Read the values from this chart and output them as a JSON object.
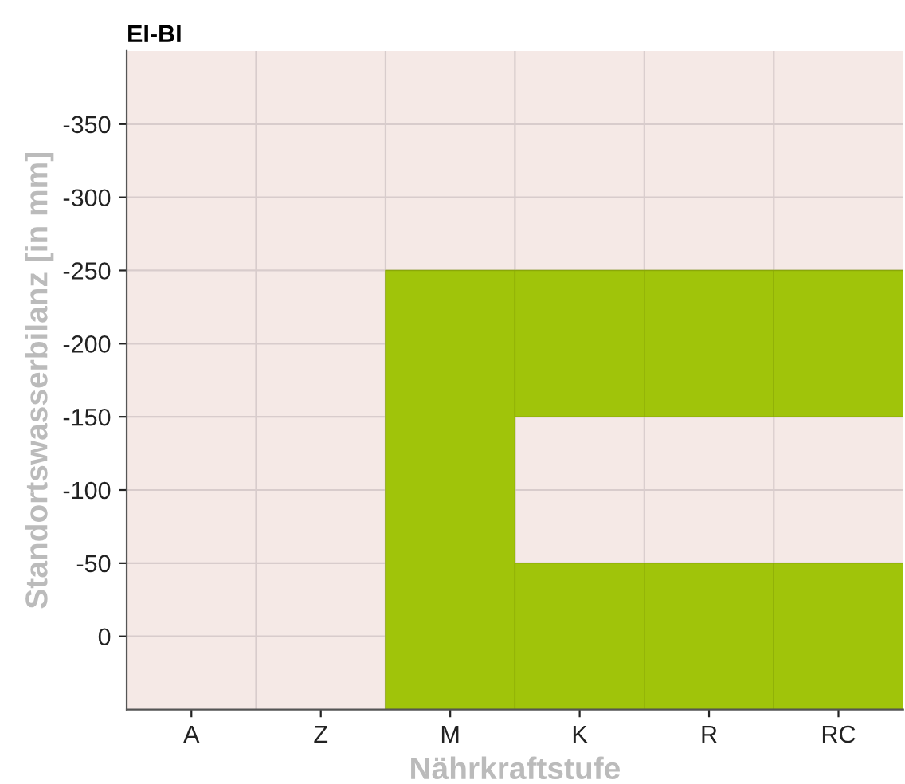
{
  "chart_data": {
    "type": "bar",
    "title": "EI-BI",
    "xlabel": "Nährkraftstufe",
    "ylabel": "Standortswasserbilanz [in mm]",
    "categories": [
      "A",
      "Z",
      "M",
      "K",
      "R",
      "RC"
    ],
    "series": [
      {
        "color": "#a0c40a",
        "base": [
          null,
          null,
          50,
          50,
          50,
          50
        ],
        "values": [
          null,
          null,
          -300,
          -100,
          -100,
          -100
        ]
      },
      {
        "color": "#a0c40a",
        "base": [
          null,
          null,
          null,
          -150,
          -150,
          -150
        ],
        "values": [
          null,
          null,
          null,
          -100,
          -100,
          -100
        ]
      }
    ],
    "ylim": [
      50,
      -400
    ],
    "yticks": [
      0,
      -50,
      -100,
      -150,
      -200,
      -250,
      -300,
      -350
    ],
    "grid": true
  }
}
